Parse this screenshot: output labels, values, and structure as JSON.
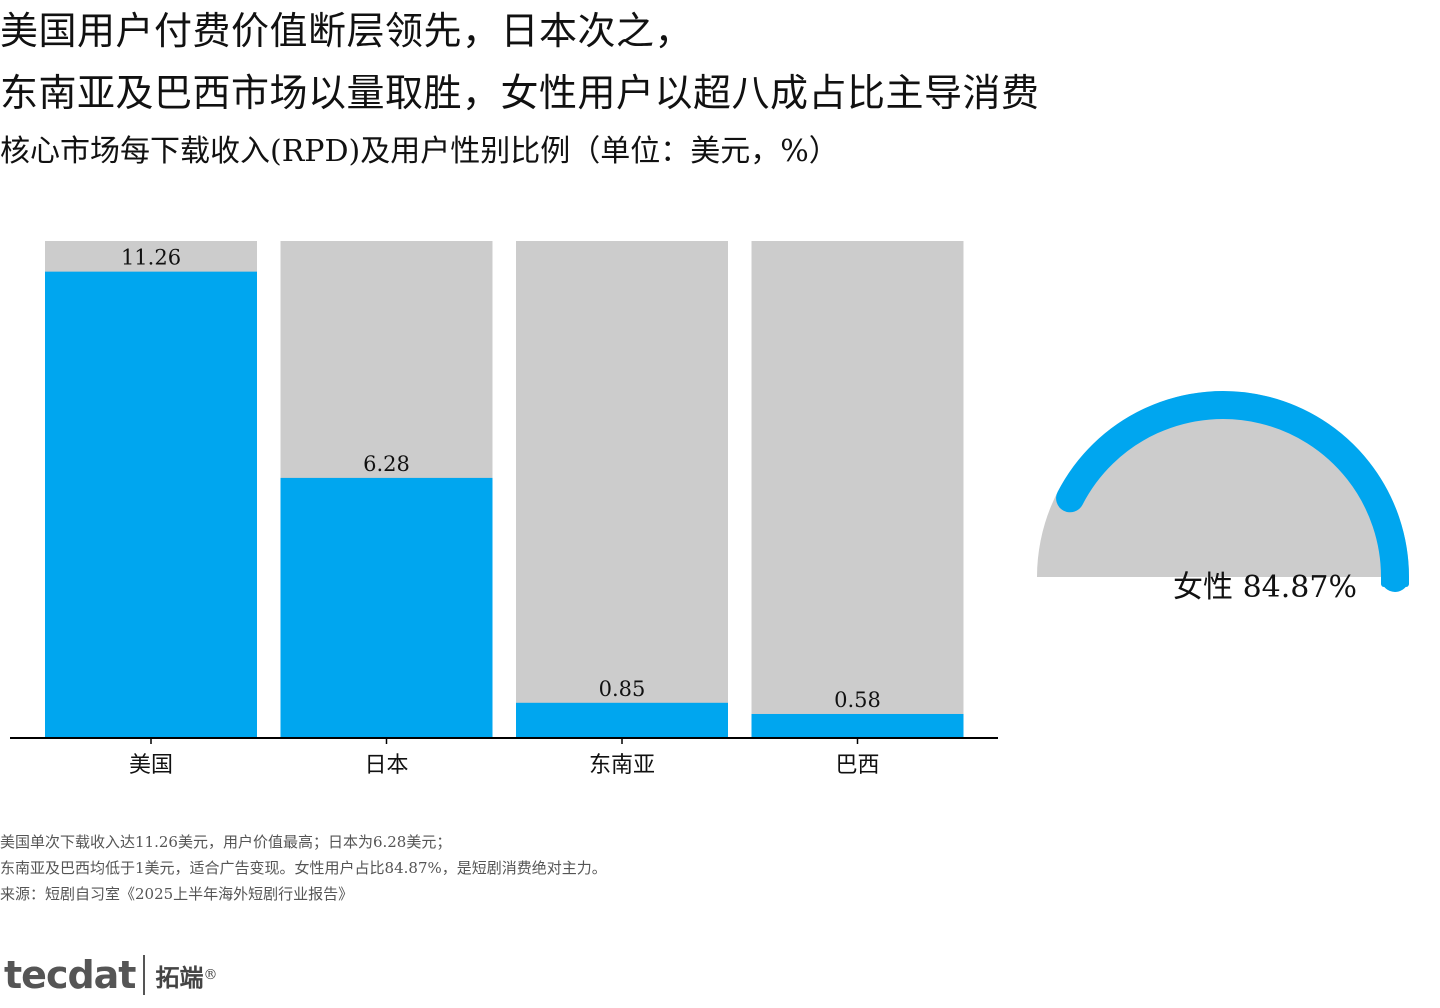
{
  "title": {
    "line1": "美国用户付费价值断层领先，日本次之，",
    "line2": "东南亚及巴西市场以量取胜，女性用户以超八成占比主导消费",
    "subtitle": "核心市场每下载收入(RPD)及用户性别比例（单位：美元，%）"
  },
  "colors": {
    "bar": "#00A6EF",
    "track": "#CCCCCC",
    "axis": "#000000"
  },
  "chart_data": [
    {
      "type": "bar",
      "categories": [
        "美国",
        "日本",
        "东南亚",
        "巴西"
      ],
      "values": [
        11.26,
        6.28,
        0.85,
        0.58
      ],
      "value_labels": [
        "11.26",
        "6.28",
        "0.85",
        "0.58"
      ],
      "ylim": [
        0,
        12
      ],
      "grid": false,
      "background_bar_max": 12
    },
    {
      "type": "pie",
      "categories": [
        "女性"
      ],
      "values": [
        84.87
      ],
      "label": "女性 84.87%",
      "style": "half-gauge"
    }
  ],
  "notes": {
    "line1": "美国单次下载收入达11.26美元，用户价值最高；日本为6.28美元；",
    "line2": "东南亚及巴西均低于1美元，适合广告变现。女性用户占比84.87%，是短剧消费绝对主力。",
    "line3": "来源：短剧自习室《2025上半年海外短剧行业报告》"
  },
  "logo": {
    "brand": "tecdat",
    "cn": "拓端",
    "reg": "®"
  }
}
